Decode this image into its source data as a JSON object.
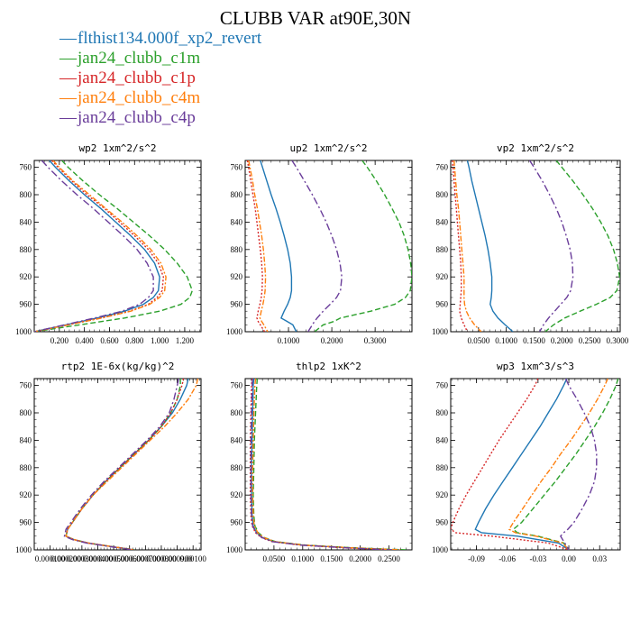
{
  "title": "CLUBB VAR at90E,30N",
  "legend": [
    {
      "label": "flthist134.000f_xp2_revert",
      "color": "#1f77b4"
    },
    {
      "label": "jan24_clubb_c1m",
      "color": "#2ca02c"
    },
    {
      "label": "jan24_clubb_c1p",
      "color": "#d62728"
    },
    {
      "label": "jan24_clubb_c4m",
      "color": "#ff7f0e"
    },
    {
      "label": "jan24_clubb_c4p",
      "color": "#6a3d9a"
    }
  ],
  "chart_data": [
    {
      "type": "line",
      "title": "wp2   1xm^2/s^2",
      "xlim": [
        0.0,
        1.33
      ],
      "ylim": [
        1000,
        750
      ],
      "xticks": [
        0.2,
        0.4,
        0.6,
        0.8,
        1.0,
        1.2
      ],
      "xticklabels": [
        "0.200",
        "0.400",
        "0.600",
        "0.800",
        "1.000",
        "1.200"
      ],
      "yticks": [
        760,
        800,
        840,
        880,
        920,
        960,
        1000
      ],
      "yticklabels": [
        "760",
        "800",
        "840",
        "880",
        "920",
        "960",
        "1000"
      ],
      "y": [
        750,
        760,
        780,
        800,
        820,
        840,
        860,
        880,
        900,
        920,
        940,
        950,
        960,
        970,
        980,
        990,
        1000
      ],
      "series": [
        {
          "name": "flthist134.000f_xp2_revert",
          "color": "#1f77b4",
          "values": [
            0.12,
            0.17,
            0.28,
            0.4,
            0.53,
            0.65,
            0.77,
            0.88,
            0.96,
            1.0,
            0.99,
            0.95,
            0.87,
            0.72,
            0.5,
            0.25,
            0.0
          ]
        },
        {
          "name": "jan24_clubb_c1m",
          "color": "#2ca02c",
          "values": [
            0.22,
            0.27,
            0.39,
            0.52,
            0.66,
            0.79,
            0.92,
            1.04,
            1.14,
            1.22,
            1.26,
            1.24,
            1.17,
            1.0,
            0.72,
            0.36,
            0.0
          ]
        },
        {
          "name": "jan24_clubb_c1p",
          "color": "#d62728",
          "values": [
            0.14,
            0.19,
            0.3,
            0.42,
            0.56,
            0.68,
            0.8,
            0.91,
            0.99,
            1.03,
            1.02,
            0.98,
            0.91,
            0.76,
            0.53,
            0.27,
            0.0
          ]
        },
        {
          "name": "jan24_clubb_c4m",
          "color": "#ff7f0e",
          "values": [
            0.15,
            0.2,
            0.31,
            0.44,
            0.57,
            0.7,
            0.82,
            0.93,
            1.01,
            1.05,
            1.04,
            1.0,
            0.92,
            0.77,
            0.54,
            0.27,
            0.0
          ]
        },
        {
          "name": "jan24_clubb_c4p",
          "color": "#6a3d9a",
          "values": [
            0.06,
            0.11,
            0.22,
            0.34,
            0.47,
            0.59,
            0.71,
            0.82,
            0.9,
            0.95,
            0.95,
            0.91,
            0.84,
            0.7,
            0.48,
            0.24,
            0.0
          ]
        }
      ]
    },
    {
      "type": "line",
      "title": "up2   1xm^2/s^2",
      "xlim": [
        0.0,
        0.385
      ],
      "ylim": [
        1000,
        750
      ],
      "xticks": [
        0.1,
        0.2,
        0.3
      ],
      "xticklabels": [
        "0.1000",
        "0.2000",
        "0.3000"
      ],
      "yticks": [
        760,
        800,
        840,
        880,
        920,
        960,
        1000
      ],
      "yticklabels": [
        "760",
        "800",
        "840",
        "880",
        "920",
        "960",
        "1000"
      ],
      "y": [
        750,
        760,
        780,
        800,
        820,
        840,
        860,
        880,
        900,
        920,
        940,
        950,
        960,
        970,
        980,
        985,
        990,
        1000
      ],
      "series": [
        {
          "name": "flthist134.000f_xp2_revert",
          "color": "#1f77b4",
          "values": [
            0.035,
            0.04,
            0.05,
            0.06,
            0.071,
            0.081,
            0.09,
            0.098,
            0.104,
            0.107,
            0.107,
            0.104,
            0.098,
            0.09,
            0.083,
            0.097,
            0.11,
            0.118
          ]
        },
        {
          "name": "jan24_clubb_c1m",
          "color": "#2ca02c",
          "values": [
            0.27,
            0.282,
            0.303,
            0.322,
            0.339,
            0.355,
            0.367,
            0.376,
            0.382,
            0.385,
            0.381,
            0.37,
            0.345,
            0.29,
            0.22,
            0.205,
            0.18,
            0.16
          ]
        },
        {
          "name": "jan24_clubb_c1p",
          "color": "#d62728",
          "values": [
            0.005,
            0.008,
            0.013,
            0.018,
            0.023,
            0.027,
            0.031,
            0.035,
            0.038,
            0.04,
            0.039,
            0.037,
            0.034,
            0.03,
            0.027,
            0.03,
            0.035,
            0.045
          ]
        },
        {
          "name": "jan24_clubb_c4m",
          "color": "#ff7f0e",
          "values": [
            0.008,
            0.011,
            0.017,
            0.022,
            0.028,
            0.033,
            0.038,
            0.042,
            0.045,
            0.047,
            0.046,
            0.044,
            0.041,
            0.037,
            0.034,
            0.038,
            0.043,
            0.052
          ]
        },
        {
          "name": "jan24_clubb_c4p",
          "color": "#6a3d9a",
          "values": [
            0.108,
            0.118,
            0.137,
            0.155,
            0.172,
            0.187,
            0.2,
            0.211,
            0.219,
            0.223,
            0.22,
            0.211,
            0.196,
            0.18,
            0.166,
            0.16,
            0.155,
            0.145
          ]
        }
      ]
    },
    {
      "type": "line",
      "title": "vp2   1xm^2/s^2",
      "xlim": [
        0.0,
        0.305
      ],
      "ylim": [
        1000,
        750
      ],
      "xticks": [
        0.05,
        0.1,
        0.15,
        0.2,
        0.25,
        0.3
      ],
      "xticklabels": [
        "0.0500",
        "0.1000",
        "0.1500",
        "0.2000",
        "0.2500",
        "0.3000"
      ],
      "yticks": [
        760,
        800,
        840,
        880,
        920,
        960,
        1000
      ],
      "yticklabels": [
        "760",
        "800",
        "840",
        "880",
        "920",
        "960",
        "1000"
      ],
      "y": [
        750,
        760,
        780,
        800,
        820,
        840,
        860,
        880,
        900,
        920,
        940,
        950,
        960,
        970,
        980,
        990,
        1000
      ],
      "series": [
        {
          "name": "flthist134.000f_xp2_revert",
          "color": "#1f77b4",
          "values": [
            0.03,
            0.033,
            0.038,
            0.044,
            0.05,
            0.056,
            0.062,
            0.067,
            0.071,
            0.074,
            0.074,
            0.073,
            0.071,
            0.076,
            0.085,
            0.098,
            0.112
          ]
        },
        {
          "name": "jan24_clubb_c1m",
          "color": "#2ca02c",
          "values": [
            0.19,
            0.2,
            0.22,
            0.238,
            0.255,
            0.27,
            0.283,
            0.293,
            0.3,
            0.304,
            0.299,
            0.287,
            0.262,
            0.233,
            0.205,
            0.185,
            0.17
          ]
        },
        {
          "name": "jan24_clubb_c1p",
          "color": "#d62728",
          "values": [
            0.003,
            0.004,
            0.006,
            0.008,
            0.01,
            0.012,
            0.014,
            0.016,
            0.018,
            0.019,
            0.019,
            0.018,
            0.017,
            0.016,
            0.019,
            0.024,
            0.03
          ]
        },
        {
          "name": "jan24_clubb_c4m",
          "color": "#ff7f0e",
          "values": [
            0.006,
            0.007,
            0.009,
            0.011,
            0.014,
            0.016,
            0.018,
            0.02,
            0.022,
            0.024,
            0.024,
            0.024,
            0.025,
            0.028,
            0.034,
            0.043,
            0.055
          ]
        },
        {
          "name": "jan24_clubb_c4p",
          "color": "#6a3d9a",
          "values": [
            0.142,
            0.15,
            0.165,
            0.178,
            0.19,
            0.2,
            0.208,
            0.215,
            0.219,
            0.22,
            0.216,
            0.209,
            0.198,
            0.187,
            0.176,
            0.167,
            0.16
          ]
        }
      ]
    },
    {
      "type": "line",
      "title": "rtp2   1E-6x(kg/kg)^2",
      "xlim": [
        0.0,
        0.00105
      ],
      "ylim": [
        1000,
        750
      ],
      "xticks": [
        0.0001,
        0.0002,
        0.0003,
        0.0004,
        0.0005,
        0.0006,
        0.0007,
        0.0008,
        0.0009,
        0.001
      ],
      "xticklabels": [
        "0.000100",
        "0.000200",
        "0.000300",
        "0.000400",
        "0.000500",
        "0.000600",
        "0.000700",
        "0.000800",
        "0.000900",
        "0.00100"
      ],
      "yticks": [
        760,
        800,
        840,
        880,
        920,
        960,
        1000
      ],
      "yticklabels": [
        "760",
        "800",
        "840",
        "880",
        "920",
        "960",
        "1000"
      ],
      "y": [
        750,
        760,
        780,
        800,
        820,
        840,
        860,
        880,
        900,
        920,
        940,
        960,
        970,
        980,
        985,
        990,
        995,
        1000
      ],
      "series": [
        {
          "name": "flthist134.000f_xp2_revert",
          "color": "#1f77b4",
          "values": [
            0.00097,
            0.00096,
            0.00092,
            0.00087,
            0.0008,
            0.00072,
            0.00063,
            0.00054,
            0.00045,
            0.00037,
            0.0003,
            0.00024,
            0.00021,
            0.0002,
            0.00025,
            0.00034,
            0.00048,
            0.00063
          ]
        },
        {
          "name": "jan24_clubb_c1m",
          "color": "#2ca02c",
          "values": [
            0.00092,
            0.00092,
            0.0009,
            0.00086,
            0.0008,
            0.00072,
            0.00063,
            0.00054,
            0.00045,
            0.00037,
            0.0003,
            0.00024,
            0.00021,
            0.0002,
            0.00025,
            0.00034,
            0.00048,
            0.00063
          ]
        },
        {
          "name": "jan24_clubb_c1p",
          "color": "#d62728",
          "values": [
            0.00094,
            0.00093,
            0.0009,
            0.00086,
            0.0008,
            0.00072,
            0.00063,
            0.00054,
            0.00045,
            0.00037,
            0.0003,
            0.00024,
            0.00021,
            0.0002,
            0.00025,
            0.00034,
            0.00048,
            0.00063
          ]
        },
        {
          "name": "jan24_clubb_c4m",
          "color": "#ff7f0e",
          "values": [
            0.00103,
            0.00102,
            0.00097,
            0.0009,
            0.00082,
            0.00073,
            0.00064,
            0.00055,
            0.00046,
            0.00037,
            0.0003,
            0.00024,
            0.00021,
            0.0002,
            0.00025,
            0.00034,
            0.00048,
            0.00063
          ]
        },
        {
          "name": "jan24_clubb_c4p",
          "color": "#6a3d9a",
          "values": [
            0.00091,
            0.0009,
            0.00088,
            0.00085,
            0.00079,
            0.00071,
            0.00062,
            0.00053,
            0.00044,
            0.00036,
            0.00029,
            0.00023,
            0.0002,
            0.00019,
            0.00024,
            0.00033,
            0.00047,
            0.00062
          ]
        }
      ]
    },
    {
      "type": "line",
      "title": "thlp2   1xK^2",
      "xlim": [
        0.0,
        0.29
      ],
      "ylim": [
        1000,
        750
      ],
      "xticks": [
        0.05,
        0.1,
        0.15,
        0.2,
        0.25
      ],
      "xticklabels": [
        "0.0500",
        "0.1000",
        "0.1500",
        "0.2000",
        "0.2500"
      ],
      "yticks": [
        760,
        800,
        840,
        880,
        920,
        960,
        1000
      ],
      "yticklabels": [
        "760",
        "800",
        "840",
        "880",
        "920",
        "960",
        "1000"
      ],
      "y": [
        750,
        760,
        800,
        840,
        880,
        920,
        950,
        965,
        975,
        982,
        988,
        993,
        997,
        1000
      ],
      "series": [
        {
          "name": "flthist134.000f_xp2_revert",
          "color": "#1f77b4",
          "values": [
            0.015,
            0.014,
            0.013,
            0.012,
            0.011,
            0.011,
            0.012,
            0.014,
            0.02,
            0.03,
            0.05,
            0.1,
            0.18,
            0.26
          ]
        },
        {
          "name": "jan24_clubb_c1m",
          "color": "#2ca02c",
          "values": [
            0.021,
            0.02,
            0.018,
            0.016,
            0.015,
            0.014,
            0.015,
            0.017,
            0.023,
            0.033,
            0.053,
            0.105,
            0.19,
            0.28
          ]
        },
        {
          "name": "jan24_clubb_c1p",
          "color": "#d62728",
          "values": [
            0.012,
            0.011,
            0.01,
            0.009,
            0.009,
            0.009,
            0.01,
            0.012,
            0.018,
            0.028,
            0.047,
            0.095,
            0.17,
            0.25
          ]
        },
        {
          "name": "jan24_clubb_c4m",
          "color": "#ff7f0e",
          "values": [
            0.018,
            0.017,
            0.015,
            0.014,
            0.013,
            0.013,
            0.014,
            0.016,
            0.022,
            0.032,
            0.052,
            0.102,
            0.185,
            0.27
          ]
        },
        {
          "name": "jan24_clubb_c4p",
          "color": "#6a3d9a",
          "values": [
            0.013,
            0.012,
            0.011,
            0.01,
            0.01,
            0.01,
            0.011,
            0.013,
            0.019,
            0.029,
            0.048,
            0.097,
            0.175,
            0.255
          ]
        }
      ]
    },
    {
      "type": "line",
      "title": "wp3   1xm^3/s^3",
      "xlim": [
        -0.115,
        0.05
      ],
      "ylim": [
        1000,
        750
      ],
      "xticks": [
        -0.09,
        -0.06,
        -0.03,
        0.0,
        0.03
      ],
      "xticklabels": [
        "-0.09",
        "-0.06",
        "-0.03",
        "0.00",
        "0.03"
      ],
      "yticks": [
        760,
        800,
        840,
        880,
        920,
        960,
        1000
      ],
      "yticklabels": [
        "760",
        "800",
        "840",
        "880",
        "920",
        "960",
        "1000"
      ],
      "y": [
        750,
        760,
        780,
        800,
        820,
        840,
        860,
        880,
        900,
        920,
        940,
        960,
        970,
        975,
        980,
        990,
        1000
      ],
      "series": [
        {
          "name": "flthist134.000f_xp2_revert",
          "color": "#1f77b4",
          "values": [
            -0.002,
            -0.005,
            -0.012,
            -0.02,
            -0.028,
            -0.037,
            -0.046,
            -0.055,
            -0.064,
            -0.073,
            -0.081,
            -0.088,
            -0.091,
            -0.085,
            -0.05,
            -0.01,
            0.0
          ]
        },
        {
          "name": "jan24_clubb_c1m",
          "color": "#2ca02c",
          "values": [
            0.048,
            0.046,
            0.04,
            0.033,
            0.025,
            0.016,
            0.007,
            -0.003,
            -0.013,
            -0.024,
            -0.035,
            -0.046,
            -0.054,
            -0.05,
            -0.03,
            -0.005,
            0.0
          ]
        },
        {
          "name": "jan24_clubb_c1p",
          "color": "#d62728",
          "values": [
            -0.03,
            -0.033,
            -0.041,
            -0.05,
            -0.059,
            -0.068,
            -0.076,
            -0.084,
            -0.092,
            -0.1,
            -0.107,
            -0.113,
            -0.115,
            -0.11,
            -0.075,
            -0.02,
            0.0
          ]
        },
        {
          "name": "jan24_clubb_c4m",
          "color": "#ff7f0e",
          "values": [
            0.038,
            0.035,
            0.028,
            0.02,
            0.011,
            0.002,
            -0.008,
            -0.017,
            -0.027,
            -0.036,
            -0.045,
            -0.054,
            -0.058,
            -0.052,
            -0.032,
            -0.006,
            0.0
          ]
        },
        {
          "name": "jan24_clubb_c4p",
          "color": "#6a3d9a",
          "values": [
            -0.003,
            0.0,
            0.008,
            0.015,
            0.021,
            0.025,
            0.027,
            0.027,
            0.025,
            0.02,
            0.013,
            0.005,
            -0.001,
            -0.005,
            -0.008,
            -0.004,
            0.0
          ]
        }
      ]
    }
  ]
}
